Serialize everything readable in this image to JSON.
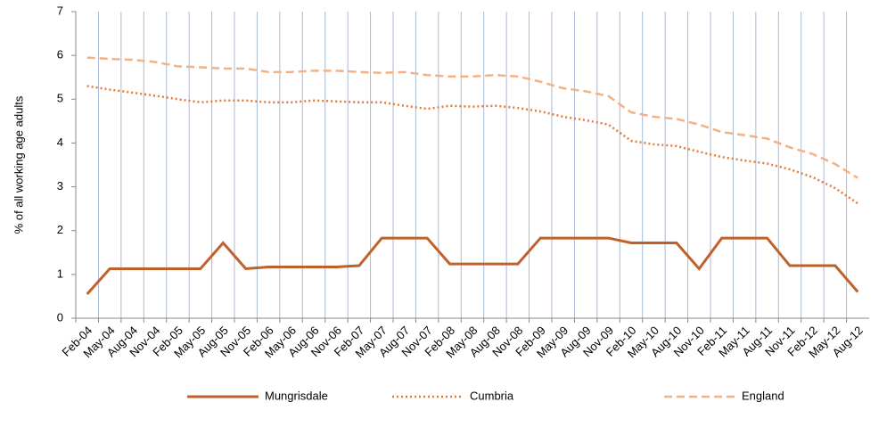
{
  "chart_data": {
    "type": "line",
    "y_label": "% of all working age adults",
    "categories": [
      "Feb-04",
      "May-04",
      "Aug-04",
      "Nov-04",
      "Feb-05",
      "May-05",
      "Aug-05",
      "Nov-05",
      "Feb-06",
      "May-06",
      "Aug-06",
      "Nov-06",
      "Feb-07",
      "May-07",
      "Aug-07",
      "Nov-07",
      "Feb-08",
      "May-08",
      "Aug-08",
      "Nov-08",
      "Feb-09",
      "May-09",
      "Aug-09",
      "Nov-09",
      "Feb-10",
      "May-10",
      "Aug-10",
      "Nov-10",
      "Feb-11",
      "May-11",
      "Aug-11",
      "Nov-11",
      "Feb-12",
      "May-12",
      "Aug-12"
    ],
    "series": [
      {
        "name": "Mungrisdale",
        "color": "#c0602a",
        "dash": "solid",
        "values": [
          0.55,
          1.13,
          1.13,
          1.13,
          1.13,
          1.13,
          1.72,
          1.13,
          1.17,
          1.17,
          1.17,
          1.17,
          1.2,
          1.83,
          1.83,
          1.83,
          1.24,
          1.24,
          1.24,
          1.24,
          1.83,
          1.83,
          1.83,
          1.83,
          1.72,
          1.72,
          1.72,
          1.13,
          1.83,
          1.83,
          1.83,
          1.2,
          1.2,
          1.2,
          0.6
        ]
      },
      {
        "name": "Cumbria",
        "color": "#e07b39",
        "dash": "dotted",
        "values": [
          5.3,
          5.22,
          5.15,
          5.08,
          5.0,
          4.93,
          4.97,
          4.97,
          4.93,
          4.93,
          4.97,
          4.95,
          4.93,
          4.93,
          4.85,
          4.78,
          4.85,
          4.83,
          4.85,
          4.8,
          4.72,
          4.6,
          4.52,
          4.42,
          4.05,
          3.97,
          3.93,
          3.8,
          3.68,
          3.6,
          3.53,
          3.4,
          3.22,
          2.97,
          2.62
        ]
      },
      {
        "name": "England",
        "color": "#f4b183",
        "dash": "dashed",
        "values": [
          5.95,
          5.92,
          5.9,
          5.85,
          5.75,
          5.73,
          5.7,
          5.7,
          5.62,
          5.62,
          5.65,
          5.65,
          5.62,
          5.6,
          5.62,
          5.55,
          5.52,
          5.52,
          5.55,
          5.52,
          5.4,
          5.25,
          5.18,
          5.07,
          4.7,
          4.6,
          4.55,
          4.42,
          4.25,
          4.18,
          4.1,
          3.9,
          3.75,
          3.52,
          3.2
        ]
      }
    ],
    "ylim": [
      0,
      7
    ],
    "yticks": [
      0,
      1,
      2,
      3,
      4,
      5,
      6,
      7
    ],
    "vertical_grid": true,
    "legend": "bottom"
  }
}
